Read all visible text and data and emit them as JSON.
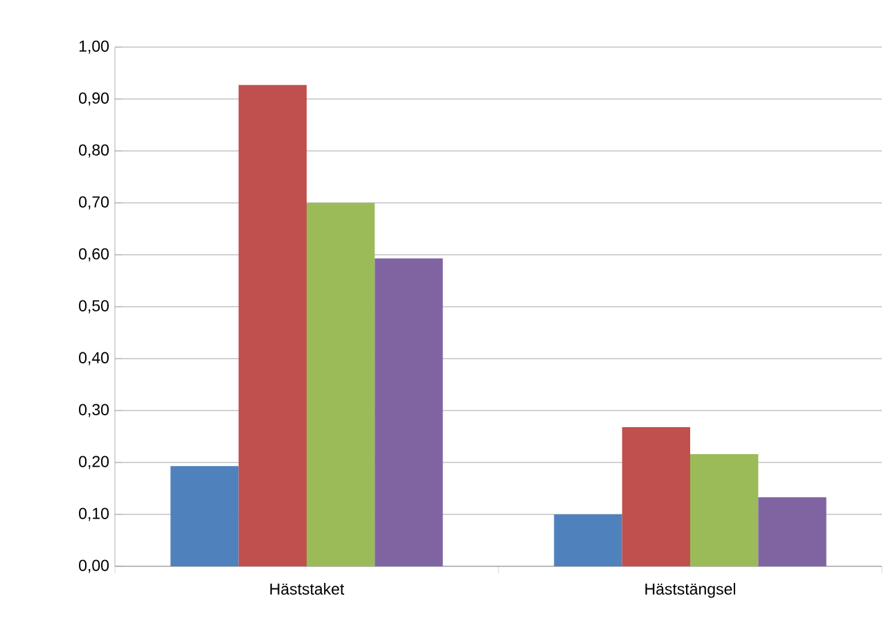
{
  "chart_data": {
    "type": "bar",
    "categories": [
      "Häststaket",
      "Häststängsel"
    ],
    "series": [
      {
        "color": "#4f81bd",
        "values": [
          0.193,
          0.1
        ]
      },
      {
        "color": "#c0504d",
        "values": [
          0.927,
          0.268
        ]
      },
      {
        "color": "#9bbb59",
        "values": [
          0.7,
          0.216
        ]
      },
      {
        "color": "#8064a2",
        "values": [
          0.593,
          0.133
        ]
      }
    ],
    "ylim": [
      0,
      1.0
    ],
    "yticks": [
      {
        "value": 0,
        "label": "0,00"
      },
      {
        "value": 0.1,
        "label": "0,10"
      },
      {
        "value": 0.2,
        "label": "0,20"
      },
      {
        "value": 0.3,
        "label": "0,30"
      },
      {
        "value": 0.4,
        "label": "0,40"
      },
      {
        "value": 0.5,
        "label": "0,50"
      },
      {
        "value": 0.6,
        "label": "0,60"
      },
      {
        "value": 0.7,
        "label": "0,70"
      },
      {
        "value": 0.8,
        "label": "0,80"
      },
      {
        "value": 0.9,
        "label": "0,90"
      },
      {
        "value": 1.0,
        "label": "1,00"
      }
    ],
    "grid": "y"
  }
}
